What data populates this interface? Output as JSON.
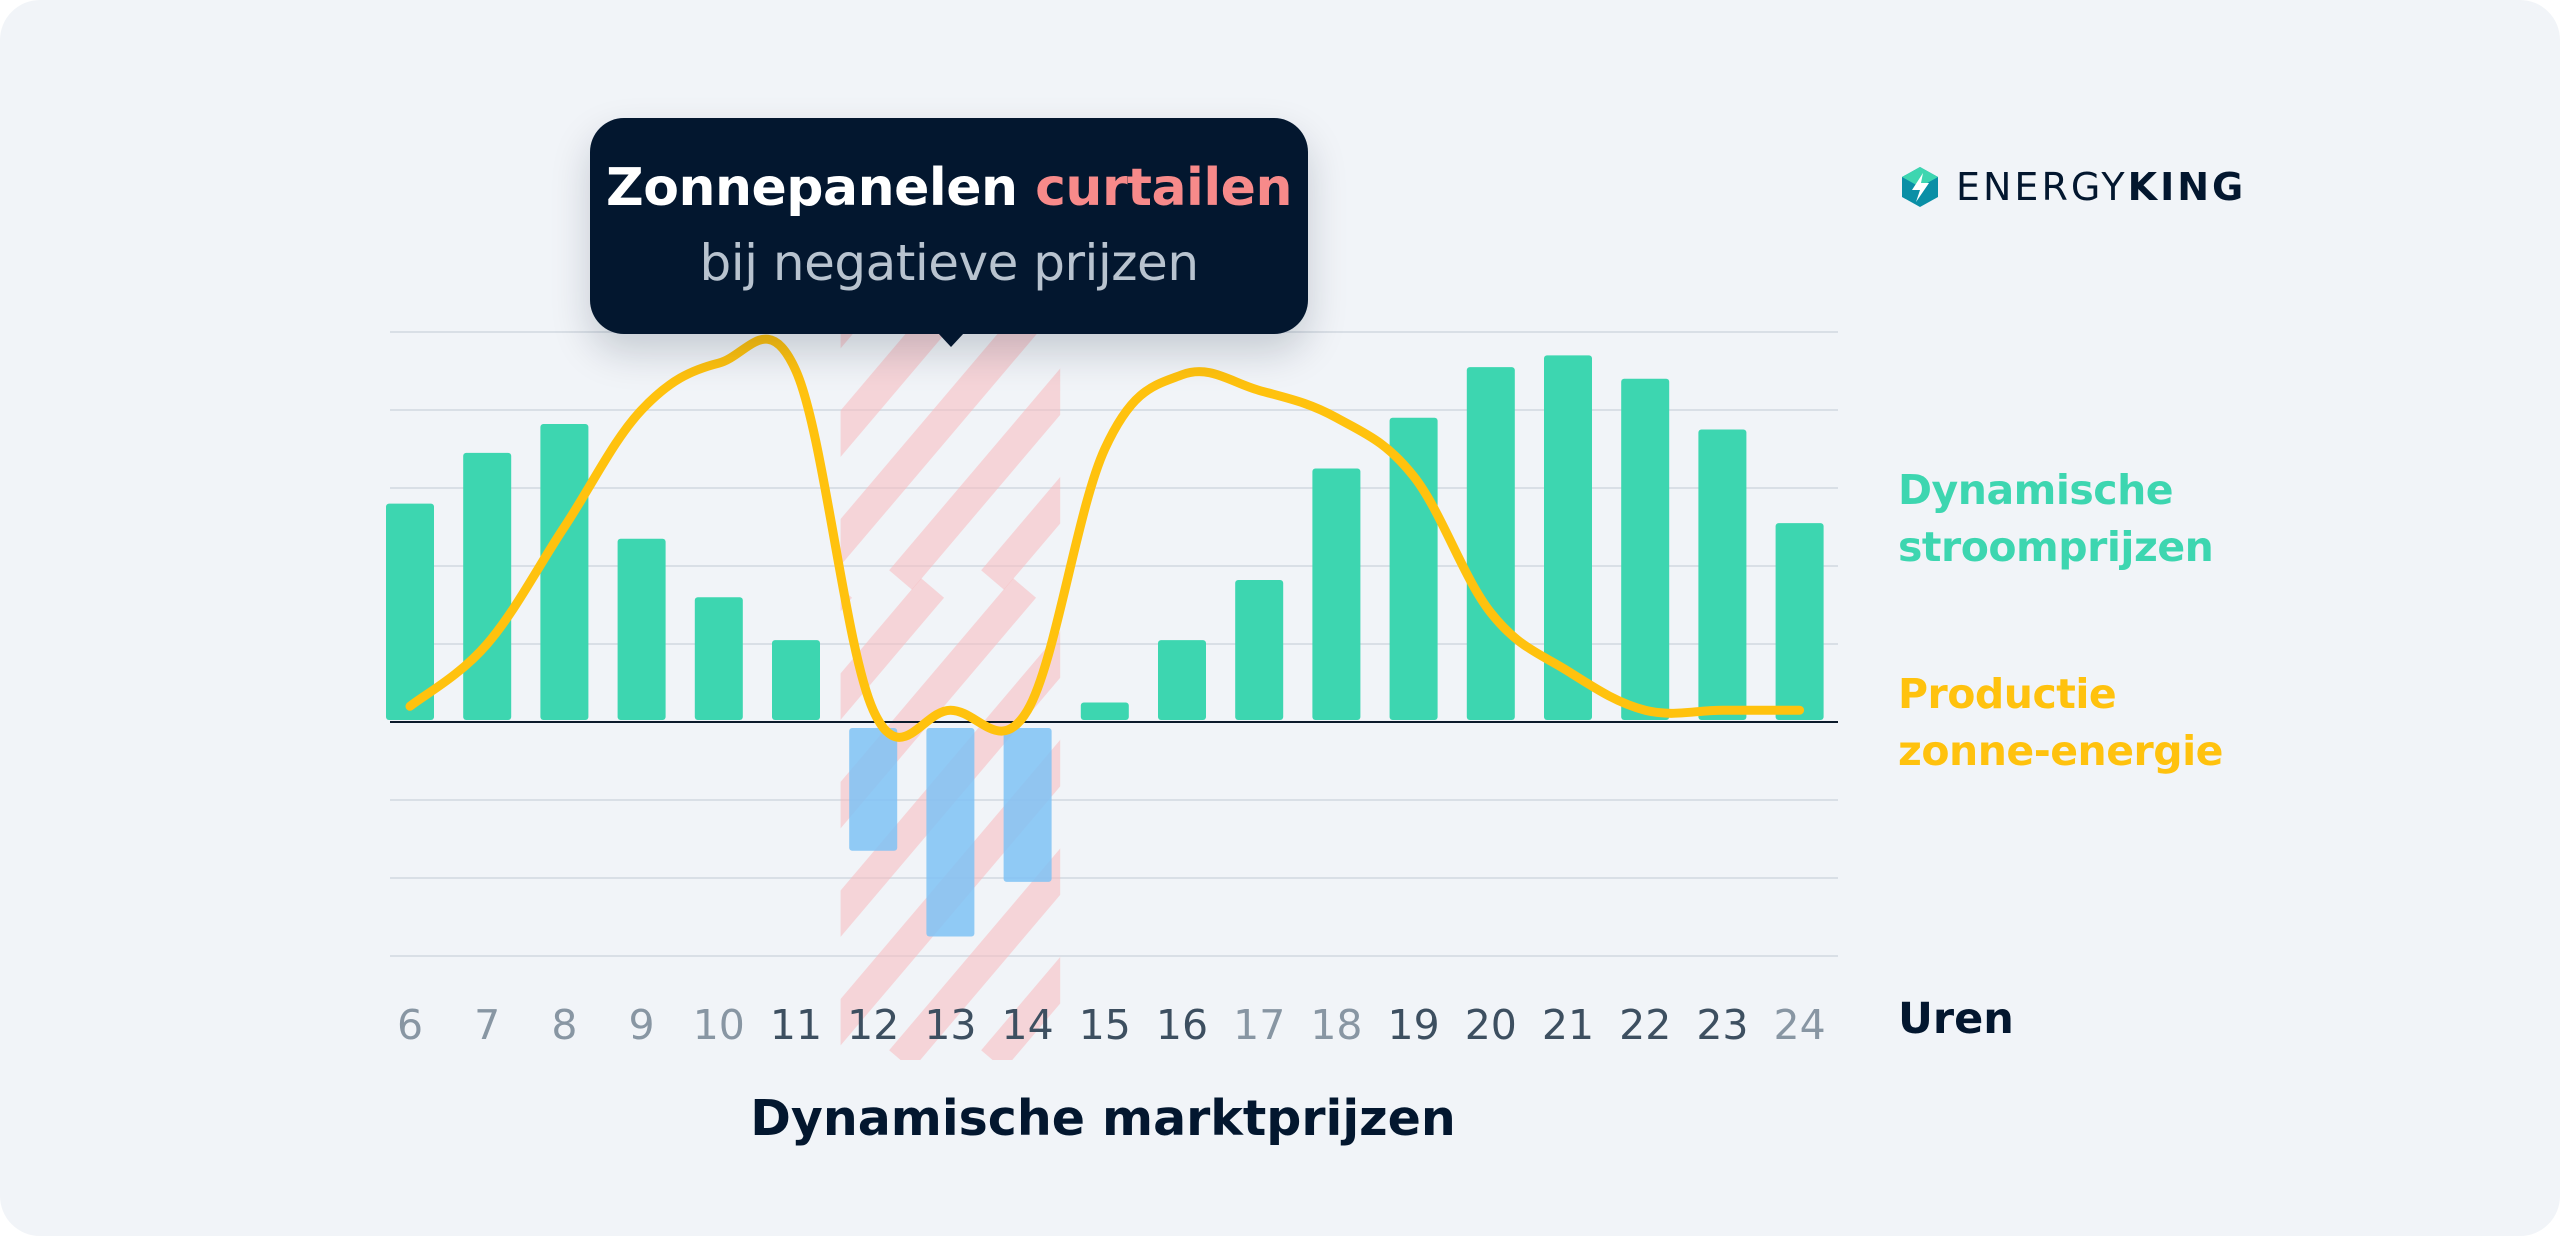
{
  "tooltip": {
    "title_main": "Zonnepanelen",
    "title_accent": "curtailen",
    "subtitle": "bij negatieve prijzen"
  },
  "brand": {
    "name_light": "ENERGY",
    "name_bold": "KING",
    "logo_icon": "energyking-logo-icon"
  },
  "legend": {
    "prices_line1": "Dynamische",
    "prices_line2": "stroomprijzen",
    "solar_line1": "Productie",
    "solar_line2": "zonne-energie"
  },
  "axis_unit_label": "Uren",
  "colors": {
    "card_background": "#f1f4f8",
    "price_bar": "#3dd6b0",
    "negative_price_bar": "#7fc2f5",
    "solar_line": "#ffc20e",
    "curtail_hatch": "#f7b9be",
    "tooltip_background": "#03172f",
    "accent_text": "#f78a8a",
    "navy_text": "#03172f",
    "muted_tick": "#8896a3",
    "dark_tick": "#3d4f60"
  },
  "chart_data": {
    "type": "bar",
    "title": "Dynamische marktprijzen",
    "xlabel": "Uren",
    "ylabel": "",
    "categories": [
      "6",
      "7",
      "8",
      "9",
      "10",
      "11",
      "12",
      "13",
      "14",
      "15",
      "16",
      "17",
      "18",
      "19",
      "20",
      "21",
      "22",
      "23",
      "24"
    ],
    "tick_emphasis": [
      "muted",
      "muted",
      "muted",
      "muted",
      "muted",
      "dark",
      "dark",
      "dark",
      "dark",
      "dark",
      "dark",
      "muted",
      "muted",
      "dark",
      "dark",
      "dark",
      "dark",
      "dark",
      "muted"
    ],
    "ylim": [
      -3,
      5
    ],
    "gridlines": [
      -3,
      -2,
      -1,
      0,
      1,
      2,
      3,
      4,
      5
    ],
    "series": [
      {
        "name": "Dynamische stroomprijzen",
        "kind": "bar",
        "values": [
          2.8,
          3.45,
          3.82,
          2.35,
          1.6,
          1.05,
          -1.65,
          -2.75,
          -2.05,
          0.25,
          1.05,
          1.82,
          3.25,
          3.9,
          4.55,
          4.7,
          4.4,
          3.75,
          2.55
        ]
      },
      {
        "name": "Productie zonne-energie",
        "kind": "line",
        "values": [
          0.15,
          0.95,
          2.45,
          3.95,
          4.55,
          4.45,
          0.1,
          0.1,
          0.1,
          3.45,
          4.4,
          4.2,
          3.85,
          3.1,
          1.35,
          0.6,
          0.1,
          0.1,
          0.1
        ]
      }
    ],
    "highlight": {
      "from": "12",
      "to": "14",
      "pattern": "diagonal-hatch",
      "meaning": "curtail"
    },
    "negative_bar_color": "#7fc2f5"
  }
}
